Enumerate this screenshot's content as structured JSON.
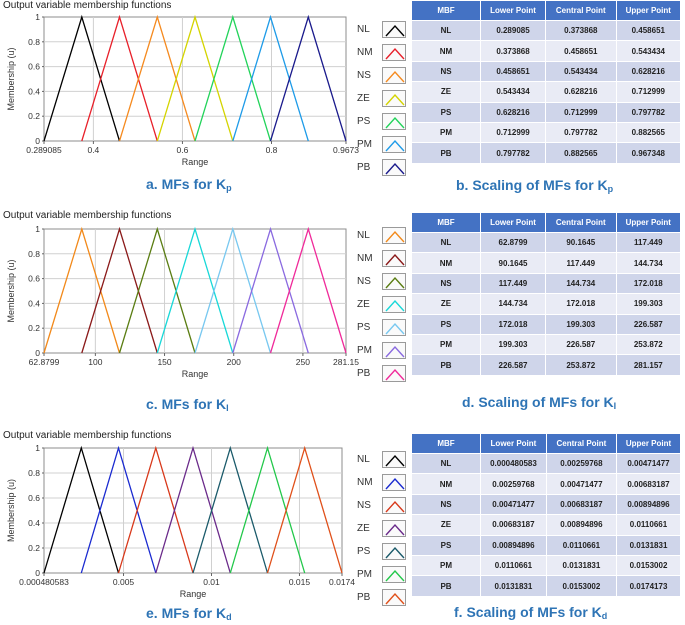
{
  "panels": [
    {
      "id": "kp",
      "title": "Output variable membership functions",
      "caption_prefix": "a. MFs for K",
      "caption_sub": "p",
      "table_caption_prefix": "b. Scaling of MFs for K",
      "table_caption_sub": "p",
      "table_headers": [
        "MBF",
        "Lower Point",
        "Central Point",
        "Upper Point"
      ],
      "table_rows": [
        [
          "NL",
          "0.289085",
          "0.373868",
          "0.458651"
        ],
        [
          "NM",
          "0.373868",
          "0.458651",
          "0.543434"
        ],
        [
          "NS",
          "0.458651",
          "0.543434",
          "0.628216"
        ],
        [
          "ZE",
          "0.543434",
          "0.628216",
          "0.712999"
        ],
        [
          "PS",
          "0.628216",
          "0.712999",
          "0.797782"
        ],
        [
          "PM",
          "0.712999",
          "0.797782",
          "0.882565"
        ],
        [
          "PB",
          "0.797782",
          "0.882565",
          "0.967348"
        ]
      ]
    },
    {
      "id": "ki",
      "title": "Output variable membership functions",
      "caption_prefix": "c. MFs for K",
      "caption_sub": "I",
      "table_caption_prefix": "d. Scaling of MFs for K",
      "table_caption_sub": "I",
      "table_headers": [
        "MBF",
        "Lower Point",
        "Central Point",
        "Upper Point"
      ],
      "table_rows": [
        [
          "NL",
          "62.8799",
          "90.1645",
          "117.449"
        ],
        [
          "NM",
          "90.1645",
          "117.449",
          "144.734"
        ],
        [
          "NS",
          "117.449",
          "144.734",
          "172.018"
        ],
        [
          "ZE",
          "144.734",
          "172.018",
          "199.303"
        ],
        [
          "PS",
          "172.018",
          "199.303",
          "226.587"
        ],
        [
          "PM",
          "199.303",
          "226.587",
          "253.872"
        ],
        [
          "PB",
          "226.587",
          "253.872",
          "281.157"
        ]
      ]
    },
    {
      "id": "kd",
      "title": "Output variable membership functions",
      "caption_prefix": "e. MFs for K",
      "caption_sub": "d",
      "table_caption_prefix": "f. Scaling of MFs for K",
      "table_caption_sub": "d",
      "table_headers": [
        "MBF",
        "Lower Point",
        "Central Point",
        "Upper Point"
      ],
      "table_rows": [
        [
          "NL",
          "0.000480583",
          "0.00259768",
          "0.00471477"
        ],
        [
          "NM",
          "0.00259768",
          "0.00471477",
          "0.00683187"
        ],
        [
          "NS",
          "0.00471477",
          "0.00683187",
          "0.00894896"
        ],
        [
          "ZE",
          "0.00683187",
          "0.00894896",
          "0.0110661"
        ],
        [
          "PS",
          "0.00894896",
          "0.0110661",
          "0.0131831"
        ],
        [
          "PM",
          "0.0110661",
          "0.0131831",
          "0.0153002"
        ],
        [
          "PB",
          "0.0131831",
          "0.0153002",
          "0.0174173"
        ]
      ]
    }
  ],
  "chart_data": [
    {
      "type": "line",
      "title": "Output variable membership functions",
      "xlabel": "Range",
      "ylabel": "Membership (u)",
      "xlim": [
        0.289085,
        0.9673
      ],
      "ylim": [
        0,
        1
      ],
      "grid": true,
      "legend": "right",
      "x_tick_values": [
        0.289085,
        0.4,
        0.6,
        0.8,
        0.9673
      ],
      "x_tick_labels": [
        "0.289085",
        "0.4",
        "0.6",
        "0.8",
        "0.9673"
      ],
      "y_ticks": [
        0,
        0.2,
        0.4,
        0.6,
        0.8,
        1
      ],
      "y_tick_labels": [
        "0",
        "0.2",
        "0.4",
        "0.6",
        "0.8",
        "1"
      ],
      "series": [
        {
          "name": "NL",
          "color": "#000000",
          "x": [
            0.289085,
            0.373868,
            0.458651
          ],
          "y": [
            0,
            1,
            0
          ]
        },
        {
          "name": "NM",
          "color": "#e8202a",
          "x": [
            0.373868,
            0.458651,
            0.543434
          ],
          "y": [
            0,
            1,
            0
          ]
        },
        {
          "name": "NS",
          "color": "#f58a1f",
          "x": [
            0.458651,
            0.543434,
            0.628216
          ],
          "y": [
            0,
            1,
            0
          ]
        },
        {
          "name": "ZE",
          "color": "#d4d400",
          "x": [
            0.543434,
            0.628216,
            0.712999
          ],
          "y": [
            0,
            1,
            0
          ]
        },
        {
          "name": "PS",
          "color": "#22d35a",
          "x": [
            0.628216,
            0.712999,
            0.797782
          ],
          "y": [
            0,
            1,
            0
          ]
        },
        {
          "name": "PM",
          "color": "#1e9be8",
          "x": [
            0.712999,
            0.797782,
            0.882565
          ],
          "y": [
            0,
            1,
            0
          ]
        },
        {
          "name": "PB",
          "color": "#1a1a8c",
          "x": [
            0.797782,
            0.882565,
            0.967348
          ],
          "y": [
            0,
            1,
            0
          ]
        }
      ]
    },
    {
      "type": "line",
      "title": "Output variable membership functions",
      "xlabel": "Range",
      "ylabel": "Membership (u)",
      "xlim": [
        62.8799,
        281.15
      ],
      "ylim": [
        0,
        1
      ],
      "grid": true,
      "legend": "right",
      "x_tick_values": [
        62.8799,
        100,
        150,
        200,
        250,
        281.15
      ],
      "x_tick_labels": [
        "62.8799",
        "100",
        "150",
        "200",
        "250",
        "281.15"
      ],
      "y_ticks": [
        0,
        0.2,
        0.4,
        0.6,
        0.8,
        1
      ],
      "y_tick_labels": [
        "0",
        "0.2",
        "0.4",
        "0.6",
        "0.8",
        "1"
      ],
      "series": [
        {
          "name": "NL",
          "color": "#f2891a",
          "x": [
            62.8799,
            90.1645,
            117.449
          ],
          "y": [
            0,
            1,
            0
          ]
        },
        {
          "name": "NM",
          "color": "#8b1a1a",
          "x": [
            90.1645,
            117.449,
            144.734
          ],
          "y": [
            0,
            1,
            0
          ]
        },
        {
          "name": "NS",
          "color": "#5a7d12",
          "x": [
            117.449,
            144.734,
            172.018
          ],
          "y": [
            0,
            1,
            0
          ]
        },
        {
          "name": "ZE",
          "color": "#18d8d8",
          "x": [
            144.734,
            172.018,
            199.303
          ],
          "y": [
            0,
            1,
            0
          ]
        },
        {
          "name": "PS",
          "color": "#78c8f0",
          "x": [
            172.018,
            199.303,
            226.587
          ],
          "y": [
            0,
            1,
            0
          ]
        },
        {
          "name": "PM",
          "color": "#8a6ae0",
          "x": [
            199.303,
            226.587,
            253.872
          ],
          "y": [
            0,
            1,
            0
          ]
        },
        {
          "name": "PB",
          "color": "#f02a9a",
          "x": [
            226.587,
            253.872,
            281.157
          ],
          "y": [
            0,
            1,
            0
          ]
        }
      ]
    },
    {
      "type": "line",
      "title": "Output variable membership functions",
      "xlabel": "Range",
      "ylabel": "Membership (u)",
      "xlim": [
        0.000480583,
        0.0174173
      ],
      "ylim": [
        0,
        1
      ],
      "grid": true,
      "legend": "right",
      "x_tick_values": [
        0.000480583,
        0.005,
        0.01,
        0.015,
        0.0174173
      ],
      "x_tick_labels": [
        "0.000480583",
        "0.005",
        "0.01",
        "0.015",
        "0.0174"
      ],
      "y_ticks": [
        0,
        0.2,
        0.4,
        0.6,
        0.8,
        1
      ],
      "y_tick_labels": [
        "0",
        "0.2",
        "0.4",
        "0.6",
        "0.8",
        "1"
      ],
      "series": [
        {
          "name": "NL",
          "color": "#000000",
          "x": [
            0.000480583,
            0.00259768,
            0.00471477
          ],
          "y": [
            0,
            1,
            0
          ]
        },
        {
          "name": "NM",
          "color": "#1a2ad0",
          "x": [
            0.00259768,
            0.00471477,
            0.00683187
          ],
          "y": [
            0,
            1,
            0
          ]
        },
        {
          "name": "NS",
          "color": "#d8381a",
          "x": [
            0.00471477,
            0.00683187,
            0.00894896
          ],
          "y": [
            0,
            1,
            0
          ]
        },
        {
          "name": "ZE",
          "color": "#6a2a8a",
          "x": [
            0.00683187,
            0.00894896,
            0.0110661
          ],
          "y": [
            0,
            1,
            0
          ]
        },
        {
          "name": "PS",
          "color": "#1a5a6a",
          "x": [
            0.00894896,
            0.0110661,
            0.0131831
          ],
          "y": [
            0,
            1,
            0
          ]
        },
        {
          "name": "PM",
          "color": "#22c84a",
          "x": [
            0.0110661,
            0.0131831,
            0.0153002
          ],
          "y": [
            0,
            1,
            0
          ]
        },
        {
          "name": "PB",
          "color": "#e0501a",
          "x": [
            0.0131831,
            0.0153002,
            0.0174173
          ],
          "y": [
            0,
            1,
            0
          ]
        }
      ]
    }
  ]
}
